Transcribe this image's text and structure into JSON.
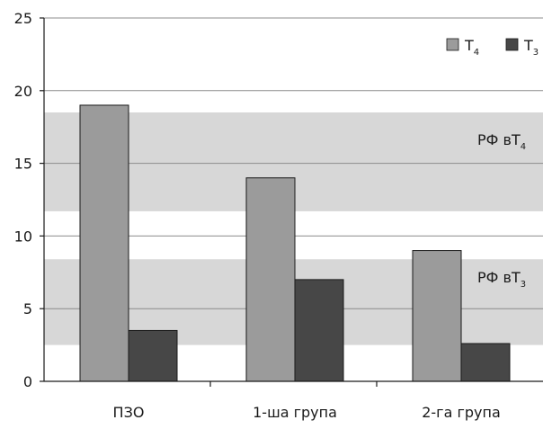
{
  "chart_data": {
    "type": "bar",
    "categories": [
      "ПЗО",
      "1-ша група",
      "2-га група"
    ],
    "series": [
      {
        "name": "T",
        "sub": "4",
        "values": [
          19,
          14,
          9
        ]
      },
      {
        "name": "T",
        "sub": "3",
        "values": [
          3.5,
          7,
          2.6
        ]
      }
    ],
    "ylim": [
      0,
      25
    ],
    "yticks": [
      0,
      5,
      10,
      15,
      20,
      25
    ],
    "grid": true,
    "legend": "top-right",
    "reference_bands": [
      {
        "label": "РФ вТ",
        "sub": "4",
        "from": 11.7,
        "to": 18.5
      },
      {
        "label": "РФ вТ",
        "sub": "3",
        "from": 2.5,
        "to": 8.4
      }
    ],
    "colors": {
      "series": [
        "#9b9b9b",
        "#474747"
      ],
      "band": "#d7d7d7",
      "grid": "#8c8c8c",
      "axis": "#1a1a1a"
    }
  }
}
